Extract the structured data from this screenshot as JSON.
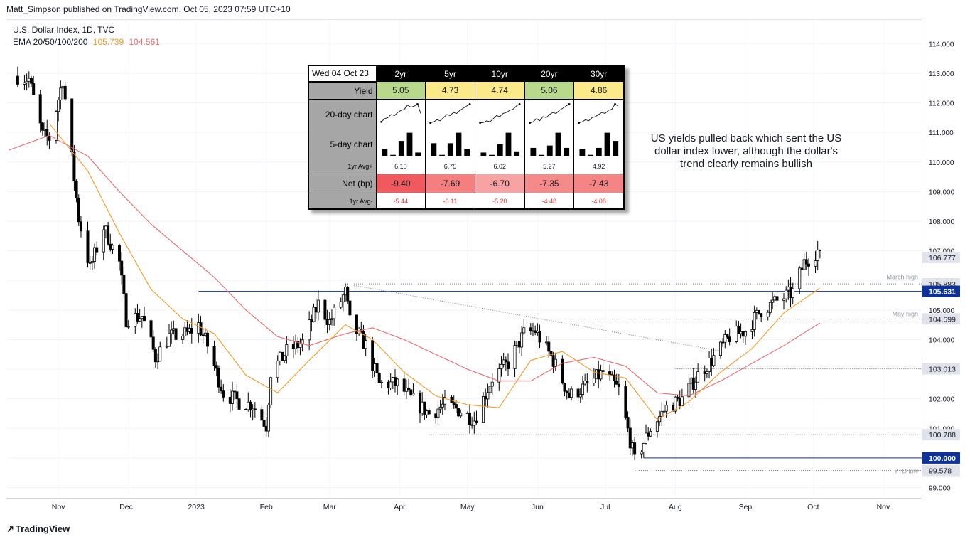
{
  "header": {
    "publish_line": "Matt_Simpson published on TradingView.com, Oct 05, 2023 07:59 UTC+10"
  },
  "legend": {
    "symbol_line": "U.S. Dollar Index, 1D, TVC",
    "ema_label": "EMA 20/50/100/200",
    "ema_value_1": "105.739",
    "ema_value_2": "104.561"
  },
  "annotation": {
    "text": "US yields pulled back which sent the US dollar index lower, although the dollar's trend clearly remains bullish"
  },
  "footer": {
    "logo_text": "TradingView"
  },
  "colors": {
    "up_candle": "#ffffff",
    "down_candle": "#000000",
    "ema_20": "#f59a23",
    "ema_50": "#e8686e",
    "level_line": "#0c3299",
    "price_label_bg": "#0c3299"
  },
  "yield_table": {
    "date": "Wed 04 Oct 23",
    "labels": {
      "yield": "Yield",
      "chart20": "20-day chart",
      "chart5": "5-day chart",
      "avg_plus": "1yr Avg+",
      "net": "Net (bp)",
      "avg_minus": "1yr Avg-"
    },
    "columns": [
      {
        "tenor": "2yr",
        "yield": "5.05",
        "avg_plus": "6.10",
        "net": "-9.40",
        "avg_minus": "-5.44",
        "yield_color": "#b8d98b",
        "net_color": "#f0595d",
        "spark20": [
          0.15,
          0.3,
          0.35,
          0.5,
          0.45,
          0.6,
          0.7,
          0.75,
          0.95,
          0.85,
          0.9,
          1.0,
          0.55
        ],
        "bars5": [
          0.3,
          0.05,
          0.65,
          1.0,
          0.15
        ]
      },
      {
        "tenor": "5yr",
        "yield": "4.73",
        "avg_plus": "6.75",
        "net": "-7.69",
        "avg_minus": "-6.11",
        "yield_color": "#fbe98a",
        "net_color": "#f57f7f",
        "spark20": [
          0.1,
          0.15,
          0.25,
          0.2,
          0.35,
          0.5,
          0.45,
          0.6,
          0.55,
          0.7,
          0.8,
          0.9,
          1.0
        ],
        "bars5": [
          0.55,
          0.05,
          0.55,
          1.0,
          0.3
        ]
      },
      {
        "tenor": "10yr",
        "yield": "4.74",
        "avg_plus": "6.02",
        "net": "-6.70",
        "avg_minus": "-5.20",
        "yield_color": "#fbe98a",
        "net_color": "#f8a3a3",
        "spark20": [
          0.1,
          0.12,
          0.2,
          0.15,
          0.3,
          0.45,
          0.4,
          0.55,
          0.6,
          0.7,
          0.75,
          0.9,
          1.0
        ],
        "bars5": [
          0.15,
          0.05,
          0.5,
          1.0,
          0.2
        ]
      },
      {
        "tenor": "20yr",
        "yield": "5.06",
        "avg_plus": "5.27",
        "net": "-7.35",
        "avg_minus": "-4.48",
        "yield_color": "#b8d98b",
        "net_color": "#f58a8a",
        "spark20": [
          0.1,
          0.15,
          0.3,
          0.2,
          0.4,
          0.35,
          0.5,
          0.6,
          0.55,
          0.7,
          0.8,
          0.9,
          1.0
        ],
        "bars5": [
          0.35,
          0.05,
          0.45,
          1.0,
          0.35
        ]
      },
      {
        "tenor": "30yr",
        "yield": "4.86",
        "avg_plus": "4.92",
        "net": "-7.43",
        "avg_minus": "-4.08",
        "yield_color": "#fbe98a",
        "net_color": "#f58585",
        "spark20": [
          0.1,
          0.15,
          0.25,
          0.2,
          0.35,
          0.4,
          0.5,
          0.6,
          0.55,
          0.7,
          0.75,
          1.0,
          0.9
        ],
        "bars5": [
          0.3,
          0.05,
          0.35,
          1.0,
          0.65
        ]
      }
    ]
  },
  "chart_data": {
    "type": "candlestick",
    "title": "U.S. Dollar Index, 1D, TVC",
    "x_ticks": [
      "Nov",
      "Dec",
      "2023",
      "Feb",
      "Mar",
      "Apr",
      "May",
      "Jun",
      "Jul",
      "Aug",
      "Sep",
      "Oct",
      "Nov"
    ],
    "y_ticks": [
      "114.000",
      "113.000",
      "112.000",
      "111.000",
      "110.000",
      "109.000",
      "108.000",
      "107.000",
      "106.000",
      "105.000",
      "104.000",
      "103.000",
      "102.000",
      "101.000",
      "100.000",
      "99.000"
    ],
    "ylim": [
      98.7,
      114.8
    ],
    "price_label_values": [
      {
        "value": 106.777,
        "text": "106.777",
        "style": "plain"
      },
      {
        "value": 105.883,
        "text": "105.883",
        "style": "plain"
      },
      {
        "value": 105.631,
        "text": "105.631",
        "style": "highlight"
      },
      {
        "value": 104.699,
        "text": "104.699",
        "style": "plain"
      },
      {
        "value": 103.013,
        "text": "103.013",
        "style": "plain"
      },
      {
        "value": 100.788,
        "text": "100.788",
        "style": "plain"
      },
      {
        "value": 100.0,
        "text": "100.000",
        "style": "highlight"
      },
      {
        "value": 99.578,
        "text": "99.578",
        "style": "plain"
      }
    ],
    "level_labels": [
      {
        "text": "March high",
        "value": 105.95
      },
      {
        "text": "May high",
        "value": 104.7
      },
      {
        "text": "YTD low",
        "value": 99.38
      }
    ],
    "horizontal_lines": [
      {
        "value": 105.631,
        "style": "solid",
        "from": "2023-01-02"
      },
      {
        "value": 105.883,
        "style": "dotted",
        "from": "2023-03-08"
      },
      {
        "value": 104.699,
        "style": "dotted",
        "from": "2023-05-31"
      },
      {
        "value": 103.013,
        "style": "dotted",
        "from": "2023-08-01"
      },
      {
        "value": 100.788,
        "style": "dotted",
        "from": "2023-04-14"
      },
      {
        "value": 100.0,
        "style": "solid",
        "from": "2023-07-18"
      },
      {
        "value": 99.578,
        "style": "dotted",
        "from": "2023-07-14"
      }
    ],
    "trend_line": [
      {
        "date": "2023-03-08",
        "value": 105.883
      },
      {
        "date": "2023-08-22",
        "value": 103.6
      }
    ],
    "close_path": [
      [
        "2022-10-14",
        112.9
      ],
      [
        "2022-10-19",
        112.8
      ],
      [
        "2022-10-25",
        110.9
      ],
      [
        "2022-10-28",
        110.8
      ],
      [
        "2022-11-03",
        112.8
      ],
      [
        "2022-11-10",
        108.1
      ],
      [
        "2022-11-15",
        106.4
      ],
      [
        "2022-11-21",
        107.8
      ],
      [
        "2022-11-28",
        106.6
      ],
      [
        "2022-12-01",
        104.7
      ],
      [
        "2022-12-08",
        104.8
      ],
      [
        "2022-12-14",
        103.4
      ],
      [
        "2022-12-20",
        104.1
      ],
      [
        "2022-12-28",
        104.2
      ],
      [
        "2023-01-02",
        104.5
      ],
      [
        "2023-01-06",
        103.8
      ],
      [
        "2023-01-13",
        102.2
      ],
      [
        "2023-01-20",
        101.9
      ],
      [
        "2023-01-26",
        101.8
      ],
      [
        "2023-02-01",
        101.1
      ],
      [
        "2023-02-03",
        102.9
      ],
      [
        "2023-02-10",
        103.6
      ],
      [
        "2023-02-17",
        103.9
      ],
      [
        "2023-02-24",
        105.2
      ],
      [
        "2023-03-01",
        104.6
      ],
      [
        "2023-03-08",
        105.6
      ],
      [
        "2023-03-10",
        104.6
      ],
      [
        "2023-03-17",
        103.8
      ],
      [
        "2023-03-23",
        102.5
      ],
      [
        "2023-03-31",
        102.5
      ],
      [
        "2023-04-06",
        102.0
      ],
      [
        "2023-04-14",
        101.5
      ],
      [
        "2023-04-21",
        101.8
      ],
      [
        "2023-04-28",
        101.6
      ],
      [
        "2023-05-04",
        101.3
      ],
      [
        "2023-05-12",
        102.7
      ],
      [
        "2023-05-19",
        103.2
      ],
      [
        "2023-05-26",
        104.2
      ],
      [
        "2023-05-31",
        104.3
      ],
      [
        "2023-06-08",
        103.3
      ],
      [
        "2023-06-15",
        102.1
      ],
      [
        "2023-06-22",
        102.4
      ],
      [
        "2023-06-30",
        102.9
      ],
      [
        "2023-07-07",
        102.3
      ],
      [
        "2023-07-12",
        100.6
      ],
      [
        "2023-07-14",
        99.9
      ],
      [
        "2023-07-21",
        101.0
      ],
      [
        "2023-07-28",
        101.7
      ],
      [
        "2023-08-04",
        102.0
      ],
      [
        "2023-08-11",
        102.8
      ],
      [
        "2023-08-18",
        103.4
      ],
      [
        "2023-08-25",
        104.1
      ],
      [
        "2023-09-01",
        104.3
      ],
      [
        "2023-09-08",
        105.0
      ],
      [
        "2023-09-15",
        105.3
      ],
      [
        "2023-09-22",
        105.6
      ],
      [
        "2023-09-27",
        106.6
      ],
      [
        "2023-10-03",
        107.0
      ],
      [
        "2023-10-04",
        106.777
      ]
    ],
    "ema_20": [
      [
        "2022-10-28",
        111.3
      ],
      [
        "2022-11-14",
        109.7
      ],
      [
        "2022-11-28",
        107.6
      ],
      [
        "2022-12-12",
        105.7
      ],
      [
        "2022-12-26",
        104.7
      ],
      [
        "2023-01-09",
        104.2
      ],
      [
        "2023-01-23",
        102.8
      ],
      [
        "2023-02-06",
        102.2
      ],
      [
        "2023-02-20",
        103.3
      ],
      [
        "2023-03-08",
        104.5
      ],
      [
        "2023-03-20",
        104.0
      ],
      [
        "2023-04-03",
        102.9
      ],
      [
        "2023-04-17",
        102.1
      ],
      [
        "2023-05-01",
        101.8
      ],
      [
        "2023-05-15",
        101.7
      ],
      [
        "2023-05-29",
        103.3
      ],
      [
        "2023-06-12",
        103.6
      ],
      [
        "2023-06-26",
        102.9
      ],
      [
        "2023-07-10",
        102.7
      ],
      [
        "2023-07-24",
        101.3
      ],
      [
        "2023-08-07",
        101.9
      ],
      [
        "2023-08-21",
        102.9
      ],
      [
        "2023-09-04",
        103.7
      ],
      [
        "2023-09-18",
        104.9
      ],
      [
        "2023-10-04",
        105.739
      ]
    ],
    "ema_50": [
      [
        "2022-10-10",
        110.4
      ],
      [
        "2022-10-28",
        110.9
      ],
      [
        "2022-11-14",
        110.2
      ],
      [
        "2022-11-28",
        109.0
      ],
      [
        "2022-12-12",
        107.9
      ],
      [
        "2022-12-26",
        107.0
      ],
      [
        "2023-01-09",
        106.1
      ],
      [
        "2023-01-23",
        105.0
      ],
      [
        "2023-02-06",
        104.1
      ],
      [
        "2023-02-20",
        103.8
      ],
      [
        "2023-03-08",
        104.2
      ],
      [
        "2023-03-20",
        104.4
      ],
      [
        "2023-04-03",
        104.0
      ],
      [
        "2023-04-17",
        103.5
      ],
      [
        "2023-05-01",
        103.0
      ],
      [
        "2023-05-15",
        102.6
      ],
      [
        "2023-05-29",
        102.6
      ],
      [
        "2023-06-12",
        103.2
      ],
      [
        "2023-06-26",
        103.4
      ],
      [
        "2023-07-10",
        103.1
      ],
      [
        "2023-07-24",
        102.2
      ],
      [
        "2023-08-07",
        102.1
      ],
      [
        "2023-08-21",
        102.6
      ],
      [
        "2023-09-04",
        103.2
      ],
      [
        "2023-09-18",
        103.8
      ],
      [
        "2023-10-04",
        104.561
      ]
    ]
  }
}
